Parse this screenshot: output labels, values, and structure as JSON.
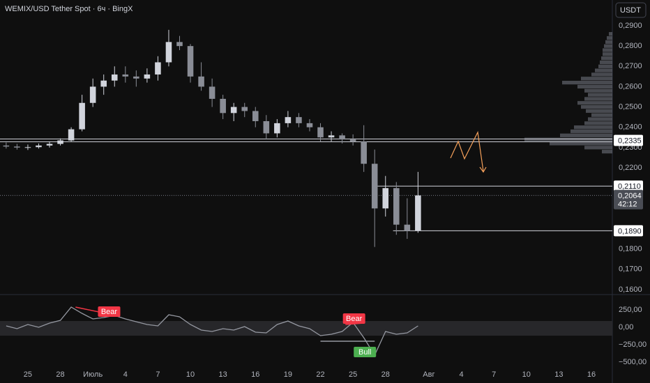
{
  "chart_data": [
    {
      "type": "candlestick",
      "title": "WEMIX/USD Tether Spot · 6ч · BingX",
      "currency": "USDT",
      "up_color": "#d1d4dc",
      "down_color": "#8a8d96",
      "x": [
        -2,
        -1,
        0,
        1,
        2,
        3,
        4,
        5,
        6,
        7,
        8,
        9,
        10,
        11,
        12,
        13,
        14,
        15,
        16,
        17,
        18,
        19,
        20,
        21,
        22,
        23,
        24,
        25,
        26,
        27,
        28,
        29,
        30,
        31,
        32,
        33,
        34,
        35,
        36
      ],
      "open": [
        0.231,
        0.2305,
        0.23,
        0.2302,
        0.231,
        0.2318,
        0.2335,
        0.239,
        0.252,
        0.26,
        0.263,
        0.266,
        0.265,
        0.264,
        0.266,
        0.272,
        0.282,
        0.28,
        0.265,
        0.26,
        0.254,
        0.247,
        0.25,
        0.248,
        0.243,
        0.237,
        0.242,
        0.245,
        0.242,
        0.24,
        0.235,
        0.236,
        0.234,
        0.233,
        0.222,
        0.2,
        0.21,
        0.192,
        0.189
      ],
      "high": [
        0.2325,
        0.2318,
        0.2315,
        0.232,
        0.233,
        0.2345,
        0.24,
        0.256,
        0.264,
        0.266,
        0.27,
        0.27,
        0.268,
        0.269,
        0.275,
        0.288,
        0.285,
        0.281,
        0.272,
        0.264,
        0.256,
        0.252,
        0.252,
        0.25,
        0.246,
        0.244,
        0.248,
        0.247,
        0.244,
        0.242,
        0.238,
        0.237,
        0.2365,
        0.241,
        0.229,
        0.216,
        0.213,
        0.205,
        0.218
      ],
      "low": [
        0.2295,
        0.229,
        0.2288,
        0.2295,
        0.23,
        0.231,
        0.233,
        0.238,
        0.25,
        0.256,
        0.26,
        0.262,
        0.26,
        0.262,
        0.263,
        0.27,
        0.278,
        0.262,
        0.258,
        0.25,
        0.244,
        0.243,
        0.245,
        0.24,
        0.234,
        0.235,
        0.24,
        0.24,
        0.238,
        0.233,
        0.233,
        0.232,
        0.231,
        0.218,
        0.181,
        0.196,
        0.187,
        0.185,
        0.188
      ],
      "close": [
        0.2305,
        0.23,
        0.2302,
        0.231,
        0.2318,
        0.2335,
        0.239,
        0.252,
        0.26,
        0.263,
        0.266,
        0.265,
        0.264,
        0.266,
        0.272,
        0.282,
        0.28,
        0.265,
        0.26,
        0.254,
        0.247,
        0.25,
        0.248,
        0.243,
        0.237,
        0.242,
        0.245,
        0.242,
        0.24,
        0.235,
        0.236,
        0.234,
        0.233,
        0.222,
        0.2,
        0.21,
        0.192,
        0.189,
        0.2064
      ],
      "xlim": [
        -2.57,
        53.93
      ],
      "xticks": [
        {
          "value": 0,
          "label": "25"
        },
        {
          "value": 3,
          "label": "28"
        },
        {
          "value": 6,
          "label": "Июль"
        },
        {
          "value": 9,
          "label": "4"
        },
        {
          "value": 12,
          "label": "7"
        },
        {
          "value": 15,
          "label": "10"
        },
        {
          "value": 18,
          "label": "13"
        },
        {
          "value": 21,
          "label": "16"
        },
        {
          "value": 24,
          "label": "19"
        },
        {
          "value": 27,
          "label": "22"
        },
        {
          "value": 30,
          "label": "25"
        },
        {
          "value": 33,
          "label": "28"
        },
        {
          "value": 37,
          "label": "Авг"
        },
        {
          "value": 40,
          "label": "4"
        },
        {
          "value": 43,
          "label": "7"
        },
        {
          "value": 46,
          "label": "10"
        },
        {
          "value": 49,
          "label": "13"
        },
        {
          "value": 52,
          "label": "16"
        }
      ],
      "ylim": [
        0.1579,
        0.3027
      ],
      "yticks": [
        {
          "value": 0.29,
          "label": "0,2900"
        },
        {
          "value": 0.28,
          "label": "0,2800"
        },
        {
          "value": 0.27,
          "label": "0,2700"
        },
        {
          "value": 0.26,
          "label": "0,2600"
        },
        {
          "value": 0.25,
          "label": "0,2500"
        },
        {
          "value": 0.24,
          "label": "0,2400"
        },
        {
          "value": 0.23,
          "label": "0,2300"
        },
        {
          "value": 0.22,
          "label": "0,2200"
        },
        {
          "value": 0.18,
          "label": "0,1800"
        },
        {
          "value": 0.17,
          "label": "0,1700"
        },
        {
          "value": 0.16,
          "label": "0,1600"
        }
      ],
      "levels": [
        {
          "value": 0.2335,
          "label": "0,2335",
          "from": -2.57
        },
        {
          "value": 0.211,
          "label": "0,2110",
          "from": 32.0
        },
        {
          "value": 0.189,
          "label": "0,1890",
          "from": 33.7
        }
      ],
      "last_price": {
        "value": 0.2064,
        "label": "0,2064",
        "countdown": "42:12"
      },
      "volume_profile": {
        "color": "#787b86",
        "prices": [
          0.286,
          0.284,
          0.282,
          0.28,
          0.278,
          0.276,
          0.274,
          0.272,
          0.27,
          0.268,
          0.266,
          0.264,
          0.262,
          0.26,
          0.258,
          0.256,
          0.254,
          0.252,
          0.25,
          0.248,
          0.246,
          0.244,
          0.242,
          0.24,
          0.238,
          0.236,
          0.234,
          0.232,
          0.23,
          0.228
        ],
        "values": [
          5,
          8,
          10,
          12,
          14,
          14,
          16,
          18,
          20,
          25,
          30,
          45,
          72,
          50,
          40,
          35,
          40,
          50,
          45,
          38,
          30,
          35,
          40,
          55,
          60,
          75,
          126,
          90,
          40,
          15
        ]
      }
    },
    {
      "type": "line",
      "color": "#9598a1",
      "x": [
        -2,
        -1,
        0,
        1,
        2,
        3,
        4,
        5,
        6,
        7,
        8,
        9,
        10,
        11,
        12,
        13,
        14,
        15,
        16,
        17,
        18,
        19,
        20,
        21,
        22,
        23,
        24,
        25,
        26,
        27,
        28,
        29,
        30,
        31,
        32,
        33,
        34,
        35,
        36
      ],
      "values": [
        20,
        -20,
        40,
        0,
        60,
        100,
        290,
        200,
        120,
        140,
        170,
        120,
        80,
        40,
        20,
        180,
        150,
        40,
        -40,
        -60,
        -20,
        -40,
        10,
        -70,
        -80,
        40,
        90,
        20,
        -20,
        -120,
        -100,
        -60,
        70,
        -150,
        -400,
        -60,
        -100,
        -80,
        20
      ],
      "band": [
        -120,
        90
      ],
      "ylim": [
        -550,
        450
      ],
      "yticks": [
        {
          "value": 250,
          "label": "250,00"
        },
        {
          "value": 0,
          "label": "0,00"
        },
        {
          "value": -250,
          "label": "−250,00"
        },
        {
          "value": -500,
          "label": "−500,00"
        }
      ],
      "annotations": [
        {
          "text": "Bear",
          "color": "#f23645",
          "x": [
            4.4,
            8.4
          ],
          "y": [
            290,
            160
          ]
        },
        {
          "text": "Bear",
          "color": "#f23645",
          "x": [
            29.3,
            31.0
          ],
          "y": [
            40,
            60
          ]
        },
        {
          "text": "Bull",
          "color": "#4caf50",
          "x": [
            27.0,
            32.0
          ],
          "y": [
            -200,
            -200
          ]
        }
      ]
    }
  ]
}
